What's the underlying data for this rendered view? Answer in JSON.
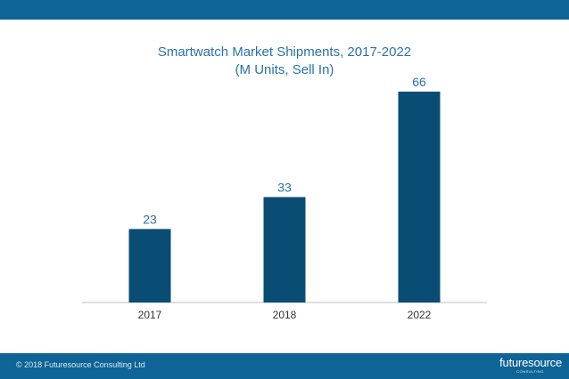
{
  "header": {},
  "chart_data": {
    "type": "bar",
    "title": "Smartwatch Market Shipments, 2017-2022",
    "subtitle": "(M Units, Sell In)",
    "categories": [
      "2017",
      "2018",
      "2022"
    ],
    "values": [
      23,
      33,
      66
    ],
    "data_labels": [
      "23",
      "33",
      "66"
    ],
    "xlabel": "",
    "ylabel": "",
    "ylim": [
      0,
      70
    ],
    "grid": false,
    "legend": "none",
    "colors": {
      "bar": "#0a4d74",
      "label": "#2a72a8",
      "axis": "#bfbfbf"
    }
  },
  "footer": {
    "copyright": "© 2018 Futuresource Consulting Ltd",
    "logo_text": "futuresource",
    "logo_sub": "CONSULTING",
    "logo_icon": "star-icon"
  },
  "theme": {
    "bar_color": "#0e6496"
  }
}
